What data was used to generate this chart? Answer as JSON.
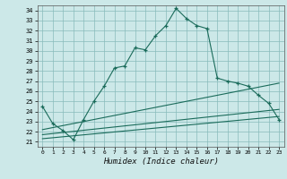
{
  "title": "",
  "xlabel": "Humidex (Indice chaleur)",
  "ylabel": "",
  "background_color": "#cce8e8",
  "grid_color": "#88bbbb",
  "line_color": "#1a6b5a",
  "xlim": [
    -0.5,
    23.5
  ],
  "ylim": [
    20.5,
    34.5
  ],
  "yticks": [
    21,
    22,
    23,
    24,
    25,
    26,
    27,
    28,
    29,
    30,
    31,
    32,
    33,
    34
  ],
  "xticks": [
    0,
    1,
    2,
    3,
    4,
    5,
    6,
    7,
    8,
    9,
    10,
    11,
    12,
    13,
    14,
    15,
    16,
    17,
    18,
    19,
    20,
    21,
    22,
    23
  ],
  "series1": {
    "x": [
      0,
      1,
      2,
      3,
      4,
      5,
      6,
      7,
      8,
      9,
      10,
      11,
      12,
      13,
      14,
      15,
      16,
      17,
      18,
      19,
      20,
      21,
      22,
      23
    ],
    "y": [
      24.5,
      22.8,
      22.1,
      21.2,
      23.2,
      25.0,
      26.5,
      28.3,
      28.5,
      30.3,
      30.1,
      31.5,
      32.5,
      34.2,
      33.2,
      32.5,
      32.2,
      27.3,
      27.0,
      26.8,
      26.5,
      25.6,
      24.8,
      23.2
    ]
  },
  "series2": {
    "x": [
      0,
      23
    ],
    "y": [
      22.2,
      26.8
    ]
  },
  "series3": {
    "x": [
      0,
      23
    ],
    "y": [
      21.7,
      24.2
    ]
  },
  "series4": {
    "x": [
      0,
      23
    ],
    "y": [
      21.3,
      23.5
    ]
  }
}
